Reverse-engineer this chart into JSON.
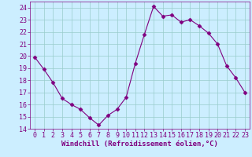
{
  "hours": [
    0,
    1,
    2,
    3,
    4,
    5,
    6,
    7,
    8,
    9,
    10,
    11,
    12,
    13,
    14,
    15,
    16,
    17,
    18,
    19,
    20,
    21,
    22,
    23
  ],
  "values": [
    19.9,
    18.9,
    17.8,
    16.5,
    16.0,
    15.6,
    14.9,
    14.3,
    15.1,
    15.6,
    16.6,
    19.4,
    21.8,
    24.1,
    23.3,
    23.4,
    22.8,
    23.0,
    22.5,
    21.9,
    21.0,
    19.2,
    18.2,
    17.0
  ],
  "line_color": "#800080",
  "marker": "D",
  "marker_size": 2.5,
  "bg_color": "#cceeff",
  "grid_color": "#99cccc",
  "xlabel": "Windchill (Refroidissement éolien,°C)",
  "ylim": [
    14,
    24.5
  ],
  "yticks": [
    14,
    15,
    16,
    17,
    18,
    19,
    20,
    21,
    22,
    23,
    24
  ],
  "xticks": [
    0,
    1,
    2,
    3,
    4,
    5,
    6,
    7,
    8,
    9,
    10,
    11,
    12,
    13,
    14,
    15,
    16,
    17,
    18,
    19,
    20,
    21,
    22,
    23
  ],
  "tick_color": "#800080",
  "xlabel_color": "#800080",
  "xlabel_fontsize": 6.5,
  "tick_fontsize": 6.0,
  "linewidth": 0.8
}
